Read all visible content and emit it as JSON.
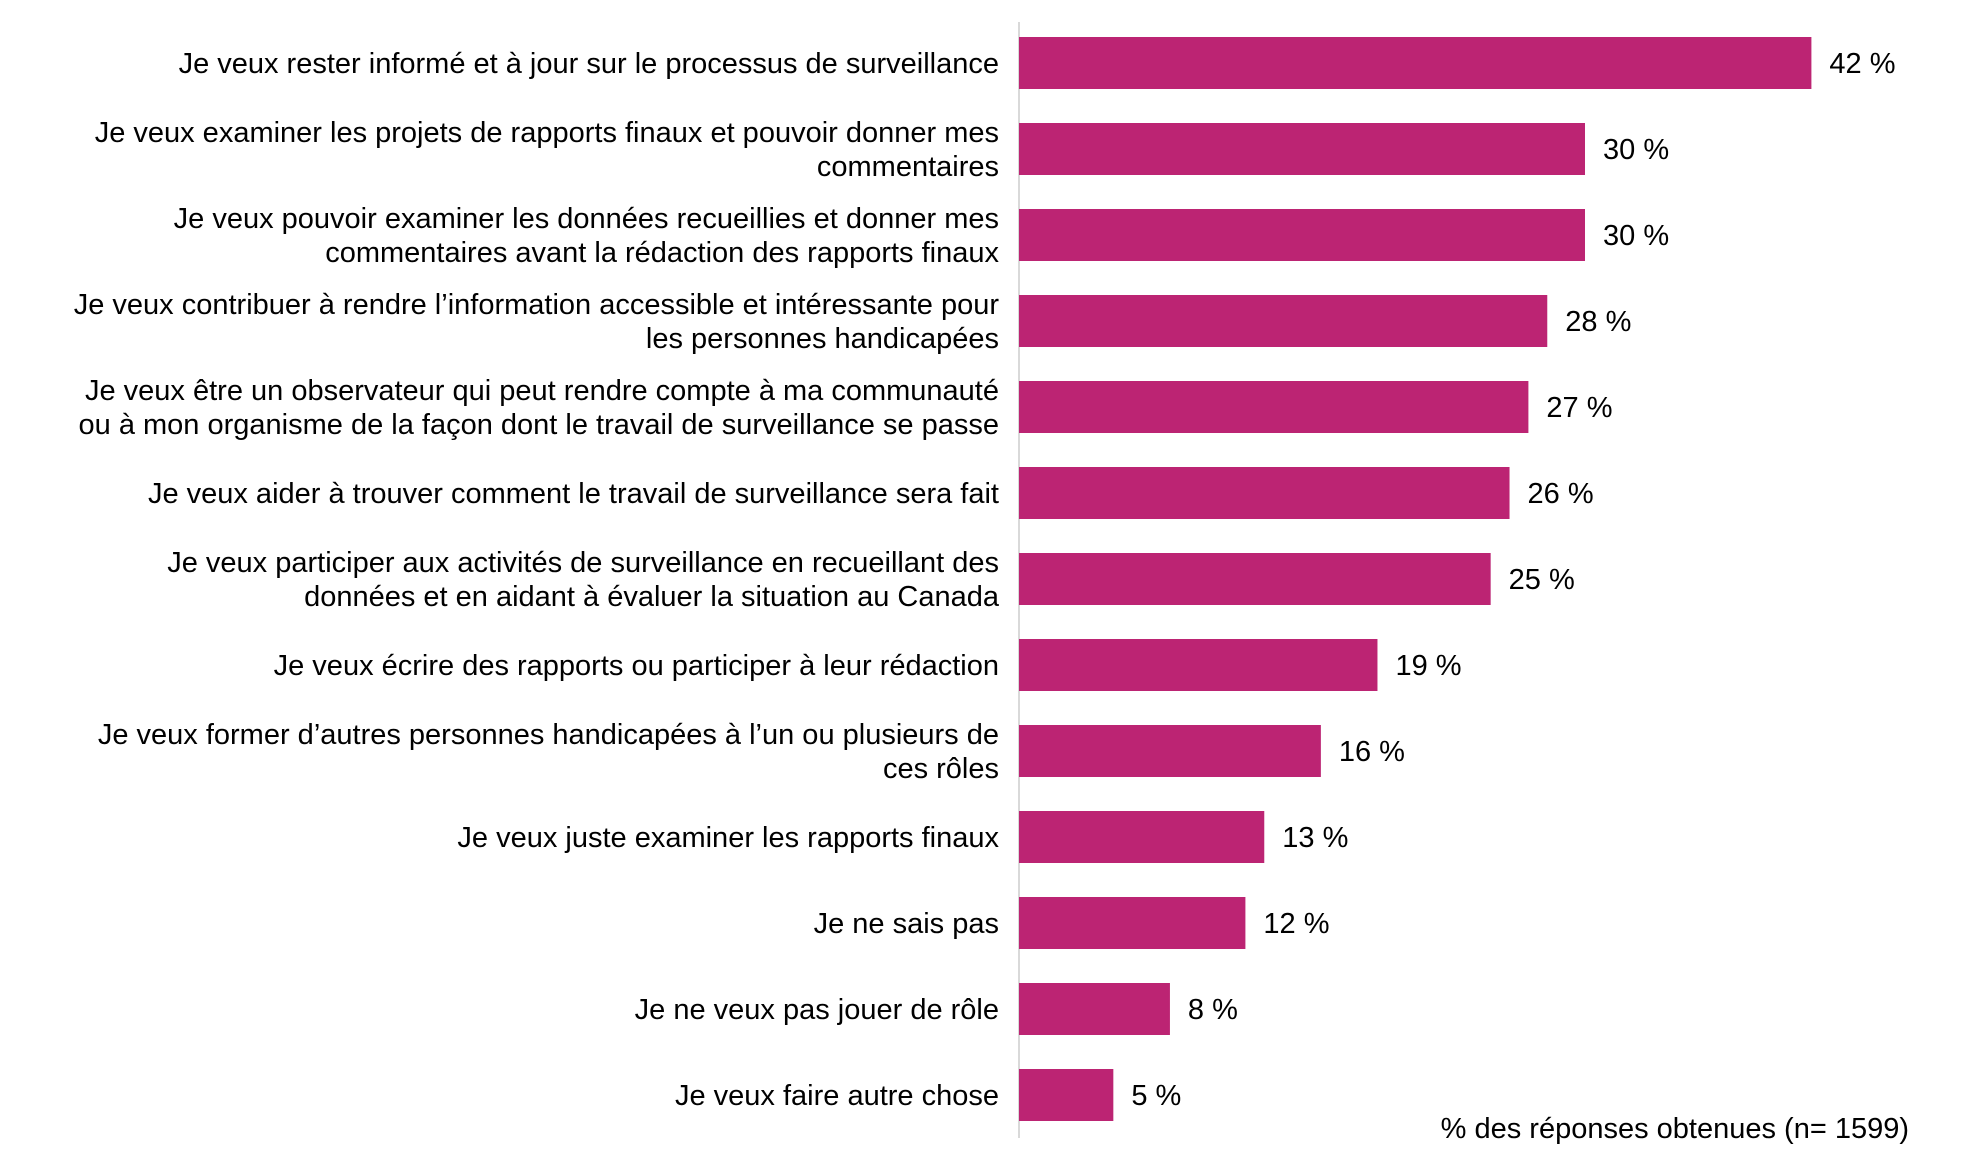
{
  "chart_data": {
    "type": "bar",
    "orientation": "horizontal",
    "categories": [
      "Je veux rester informé et à jour sur le processus de surveillance",
      "Je veux examiner les projets de rapports finaux et pouvoir donner mes commentaires",
      "Je veux pouvoir examiner les données recueillies et donner mes commentaires avant la rédaction des rapports finaux",
      "Je veux contribuer à rendre l’information accessible et intéressante pour les personnes handicapées",
      "Je veux être un observateur qui peut rendre compte à ma communauté ou à mon organisme de la façon dont le travail de surveillance se passe",
      "Je veux aider à trouver comment le travail de surveillance sera fait",
      "Je veux participer aux activités de surveillance en recueillant des données et en aidant à évaluer la situation au Canada",
      "Je veux écrire des rapports ou participer à leur rédaction",
      "Je veux former d’autres personnes handicapées à l’un ou plusieurs de ces rôles",
      "Je veux juste examiner les rapports finaux",
      "Je ne sais pas",
      "Je ne veux pas jouer de rôle",
      "Je veux faire autre chose"
    ],
    "category_lines": [
      [
        "Je veux rester informé et à jour sur le processus de surveillance"
      ],
      [
        "Je veux examiner les projets de rapports finaux et pouvoir donner mes",
        "commentaires"
      ],
      [
        "Je veux pouvoir examiner les données recueillies et donner mes",
        "commentaires avant la rédaction des rapports finaux"
      ],
      [
        "Je veux contribuer à rendre l’information accessible et intéressante pour",
        "les personnes handicapées"
      ],
      [
        "Je veux être un observateur qui peut rendre compte à ma communauté",
        "ou à mon organisme de la façon dont le travail de surveillance se passe"
      ],
      [
        "Je veux aider à trouver comment le travail de surveillance sera fait"
      ],
      [
        "Je veux participer aux activités de surveillance en recueillant des",
        "données et en aidant à évaluer la situation au Canada"
      ],
      [
        "Je veux écrire des rapports ou participer à leur rédaction"
      ],
      [
        "Je veux former d’autres personnes handicapées à l’un ou plusieurs de",
        "ces rôles"
      ],
      [
        "Je veux juste examiner les rapports finaux"
      ],
      [
        "Je ne sais pas"
      ],
      [
        "Je ne veux pas jouer de rôle"
      ],
      [
        "Je veux faire autre chose"
      ]
    ],
    "values": [
      42,
      30,
      30,
      28,
      27,
      26,
      25,
      19,
      16,
      13,
      12,
      8,
      5
    ],
    "value_labels": [
      "42 %",
      "30 %",
      "30 %",
      "28 %",
      "27 %",
      "26 %",
      "25 %",
      "19 %",
      "16 %",
      "13 %",
      "12 %",
      "8 %",
      "5 %"
    ],
    "note": "% des réponses obtenues (n= 1599)",
    "xlim": [
      0,
      45
    ],
    "grid": false,
    "bar_color": "#BC2473"
  }
}
